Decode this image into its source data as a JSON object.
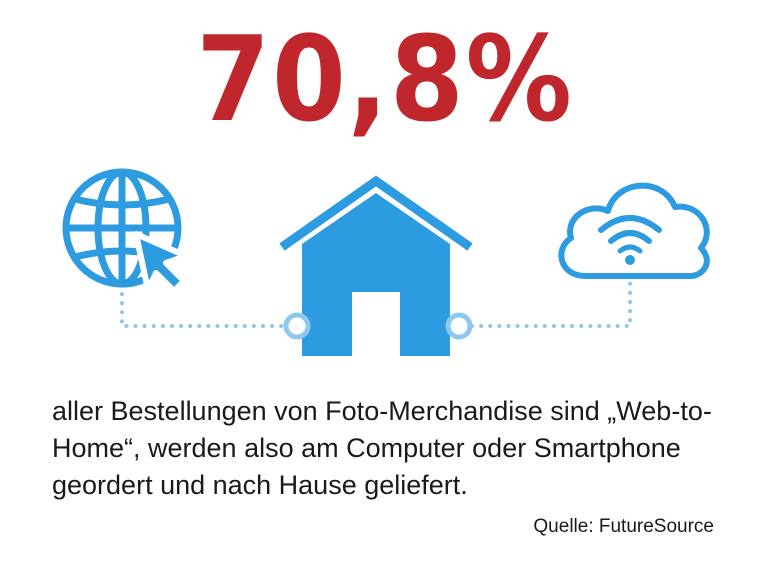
{
  "headline": {
    "value": "70,8%",
    "color": "#c0272d"
  },
  "icons": {
    "left": "globe-cursor-icon",
    "center": "house-icon",
    "right": "cloud-wifi-icon",
    "primary_color": "#2d9be0",
    "dot_color": "#8ec8ee"
  },
  "description": "aller Bestellungen von Foto-Merchandise sind „Web-to-Home“, werden also am Computer oder Smartphone geordert und nach Hause geliefert.",
  "source": "Quelle: FutureSource"
}
